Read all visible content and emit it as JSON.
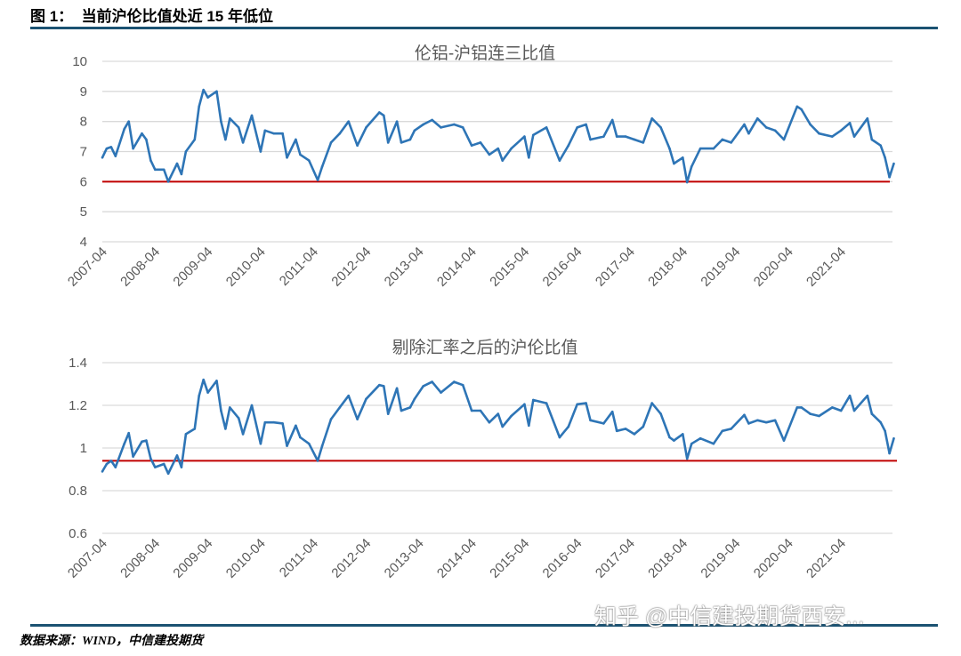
{
  "figure_title": "图 1：  当前沪伦比值处近 15 年低位",
  "source": "数据来源：WIND，中信建投期货",
  "watermark": "知乎 @中信建投期货西安...",
  "colors": {
    "series": "#2e75b6",
    "reference": "#c00000",
    "rule": "#1b5272",
    "grid": "#d9d9d9"
  },
  "chart_data": [
    {
      "type": "line",
      "title": "伦铝-沪铝连三比值",
      "ylim": [
        4,
        10
      ],
      "yticks": [
        "10",
        "9",
        "8",
        "7",
        "6",
        "5",
        "4"
      ],
      "ytick_values": [
        10,
        9,
        8,
        7,
        6,
        5,
        4
      ],
      "xticks": [
        "2007-04",
        "2008-04",
        "2009-04",
        "2010-04",
        "2011-04",
        "2012-04",
        "2013-04",
        "2014-04",
        "2015-04",
        "2016-04",
        "2017-04",
        "2018-04",
        "2019-04",
        "2020-04",
        "2021-04"
      ],
      "grid": true,
      "reference_line": 6.0,
      "x": [
        "2007-04",
        "2007-05",
        "2007-06",
        "2007-07",
        "2007-09",
        "2007-10",
        "2007-11",
        "2008-01",
        "2008-02",
        "2008-03",
        "2008-04",
        "2008-06",
        "2008-07",
        "2008-09",
        "2008-10",
        "2008-11",
        "2009-01",
        "2009-02",
        "2009-03",
        "2009-04",
        "2009-06",
        "2009-07",
        "2009-08",
        "2009-09",
        "2009-11",
        "2009-12",
        "2010-02",
        "2010-04",
        "2010-05",
        "2010-07",
        "2010-09",
        "2010-10",
        "2010-12",
        "2011-01",
        "2011-03",
        "2011-05",
        "2011-06",
        "2011-08",
        "2011-10",
        "2011-12",
        "2012-02",
        "2012-04",
        "2012-07",
        "2012-08",
        "2012-09",
        "2012-11",
        "2012-12",
        "2013-02",
        "2013-03",
        "2013-05",
        "2013-07",
        "2013-09",
        "2013-12",
        "2014-02",
        "2014-04",
        "2014-06",
        "2014-08",
        "2014-10",
        "2014-11",
        "2015-01",
        "2015-04",
        "2015-05",
        "2015-06",
        "2015-09",
        "2015-12",
        "2016-02",
        "2016-04",
        "2016-06",
        "2016-07",
        "2016-10",
        "2016-12",
        "2017-01",
        "2017-03",
        "2017-05",
        "2017-07",
        "2017-09",
        "2017-11",
        "2018-01",
        "2018-02",
        "2018-04",
        "2018-05",
        "2018-06",
        "2018-08",
        "2018-11",
        "2019-01",
        "2019-03",
        "2019-06",
        "2019-07",
        "2019-09",
        "2019-11",
        "2020-01",
        "2020-03",
        "2020-06",
        "2020-07",
        "2020-09",
        "2020-11",
        "2021-02",
        "2021-04",
        "2021-06",
        "2021-07",
        "2021-10",
        "2021-11",
        "2022-01",
        "2022-02",
        "2022-03",
        "2022-04"
      ],
      "values": [
        6.8,
        7.1,
        7.15,
        6.85,
        7.75,
        8.0,
        7.1,
        7.6,
        7.4,
        6.7,
        6.4,
        6.4,
        6.0,
        6.6,
        6.25,
        7.0,
        7.4,
        8.5,
        9.05,
        8.8,
        9.0,
        8.0,
        7.4,
        8.1,
        7.8,
        7.3,
        8.2,
        7.0,
        7.7,
        7.6,
        7.6,
        6.8,
        7.4,
        6.9,
        6.7,
        6.05,
        6.5,
        7.3,
        7.6,
        8.0,
        7.2,
        7.8,
        8.3,
        8.2,
        7.3,
        8.0,
        7.3,
        7.4,
        7.7,
        7.9,
        8.05,
        7.8,
        7.9,
        7.8,
        7.2,
        7.3,
        6.9,
        7.1,
        6.7,
        7.1,
        7.5,
        6.8,
        7.55,
        7.8,
        6.7,
        7.2,
        7.8,
        7.9,
        7.4,
        7.5,
        8.05,
        7.5,
        7.5,
        7.4,
        7.3,
        8.1,
        7.8,
        7.1,
        6.6,
        6.8,
        5.98,
        6.5,
        7.1,
        7.1,
        7.4,
        7.3,
        7.9,
        7.6,
        8.1,
        7.8,
        7.7,
        7.4,
        8.5,
        8.4,
        7.9,
        7.6,
        7.5,
        7.7,
        7.95,
        7.5,
        8.1,
        7.4,
        7.2,
        6.8,
        6.15,
        6.6
      ]
    },
    {
      "type": "line",
      "title": "剔除汇率之后的沪伦比值",
      "ylim": [
        0.6,
        1.4
      ],
      "yticks": [
        "1.4",
        "1.2",
        "1",
        "0.8",
        "0.6"
      ],
      "ytick_values": [
        1.4,
        1.2,
        1.0,
        0.8,
        0.6
      ],
      "xticks": [
        "2007-04",
        "2008-04",
        "2009-04",
        "2010-04",
        "2011-04",
        "2012-04",
        "2013-04",
        "2014-04",
        "2015-04",
        "2016-04",
        "2017-04",
        "2018-04",
        "2019-04",
        "2020-04",
        "2021-04"
      ],
      "grid": true,
      "reference_line": 0.94,
      "x": [
        "2007-04",
        "2007-05",
        "2007-06",
        "2007-07",
        "2007-09",
        "2007-10",
        "2007-11",
        "2008-01",
        "2008-02",
        "2008-03",
        "2008-04",
        "2008-06",
        "2008-07",
        "2008-09",
        "2008-10",
        "2008-11",
        "2009-01",
        "2009-02",
        "2009-03",
        "2009-04",
        "2009-06",
        "2009-07",
        "2009-08",
        "2009-09",
        "2009-11",
        "2009-12",
        "2010-02",
        "2010-04",
        "2010-05",
        "2010-07",
        "2010-09",
        "2010-10",
        "2010-12",
        "2011-01",
        "2011-03",
        "2011-05",
        "2011-06",
        "2011-08",
        "2011-10",
        "2011-12",
        "2012-02",
        "2012-04",
        "2012-07",
        "2012-08",
        "2012-09",
        "2012-11",
        "2012-12",
        "2013-02",
        "2013-03",
        "2013-05",
        "2013-07",
        "2013-09",
        "2013-12",
        "2014-02",
        "2014-04",
        "2014-06",
        "2014-08",
        "2014-10",
        "2014-11",
        "2015-01",
        "2015-04",
        "2015-05",
        "2015-06",
        "2015-09",
        "2015-12",
        "2016-02",
        "2016-04",
        "2016-06",
        "2016-07",
        "2016-10",
        "2016-12",
        "2017-01",
        "2017-03",
        "2017-05",
        "2017-07",
        "2017-09",
        "2017-11",
        "2018-01",
        "2018-02",
        "2018-04",
        "2018-05",
        "2018-06",
        "2018-08",
        "2018-11",
        "2019-01",
        "2019-03",
        "2019-06",
        "2019-07",
        "2019-09",
        "2019-11",
        "2020-01",
        "2020-03",
        "2020-06",
        "2020-07",
        "2020-09",
        "2020-11",
        "2021-02",
        "2021-04",
        "2021-06",
        "2021-07",
        "2021-10",
        "2021-11",
        "2022-01",
        "2022-02",
        "2022-03",
        "2022-04"
      ],
      "values": [
        0.89,
        0.925,
        0.94,
        0.91,
        1.02,
        1.07,
        0.96,
        1.03,
        1.035,
        0.95,
        0.91,
        0.925,
        0.88,
        0.965,
        0.91,
        1.065,
        1.09,
        1.245,
        1.32,
        1.26,
        1.315,
        1.175,
        1.09,
        1.19,
        1.14,
        1.065,
        1.2,
        1.02,
        1.12,
        1.12,
        1.115,
        1.01,
        1.105,
        1.05,
        1.02,
        0.94,
        1.01,
        1.135,
        1.19,
        1.245,
        1.135,
        1.23,
        1.295,
        1.29,
        1.16,
        1.28,
        1.175,
        1.19,
        1.23,
        1.29,
        1.31,
        1.26,
        1.31,
        1.295,
        1.175,
        1.175,
        1.12,
        1.16,
        1.1,
        1.15,
        1.205,
        1.105,
        1.225,
        1.21,
        1.05,
        1.1,
        1.205,
        1.21,
        1.13,
        1.115,
        1.17,
        1.08,
        1.09,
        1.065,
        1.1,
        1.21,
        1.16,
        1.05,
        1.035,
        1.065,
        0.95,
        1.02,
        1.045,
        1.02,
        1.08,
        1.09,
        1.155,
        1.115,
        1.13,
        1.12,
        1.13,
        1.035,
        1.19,
        1.19,
        1.16,
        1.15,
        1.19,
        1.175,
        1.245,
        1.175,
        1.245,
        1.16,
        1.12,
        1.08,
        0.975,
        1.045
      ]
    }
  ]
}
